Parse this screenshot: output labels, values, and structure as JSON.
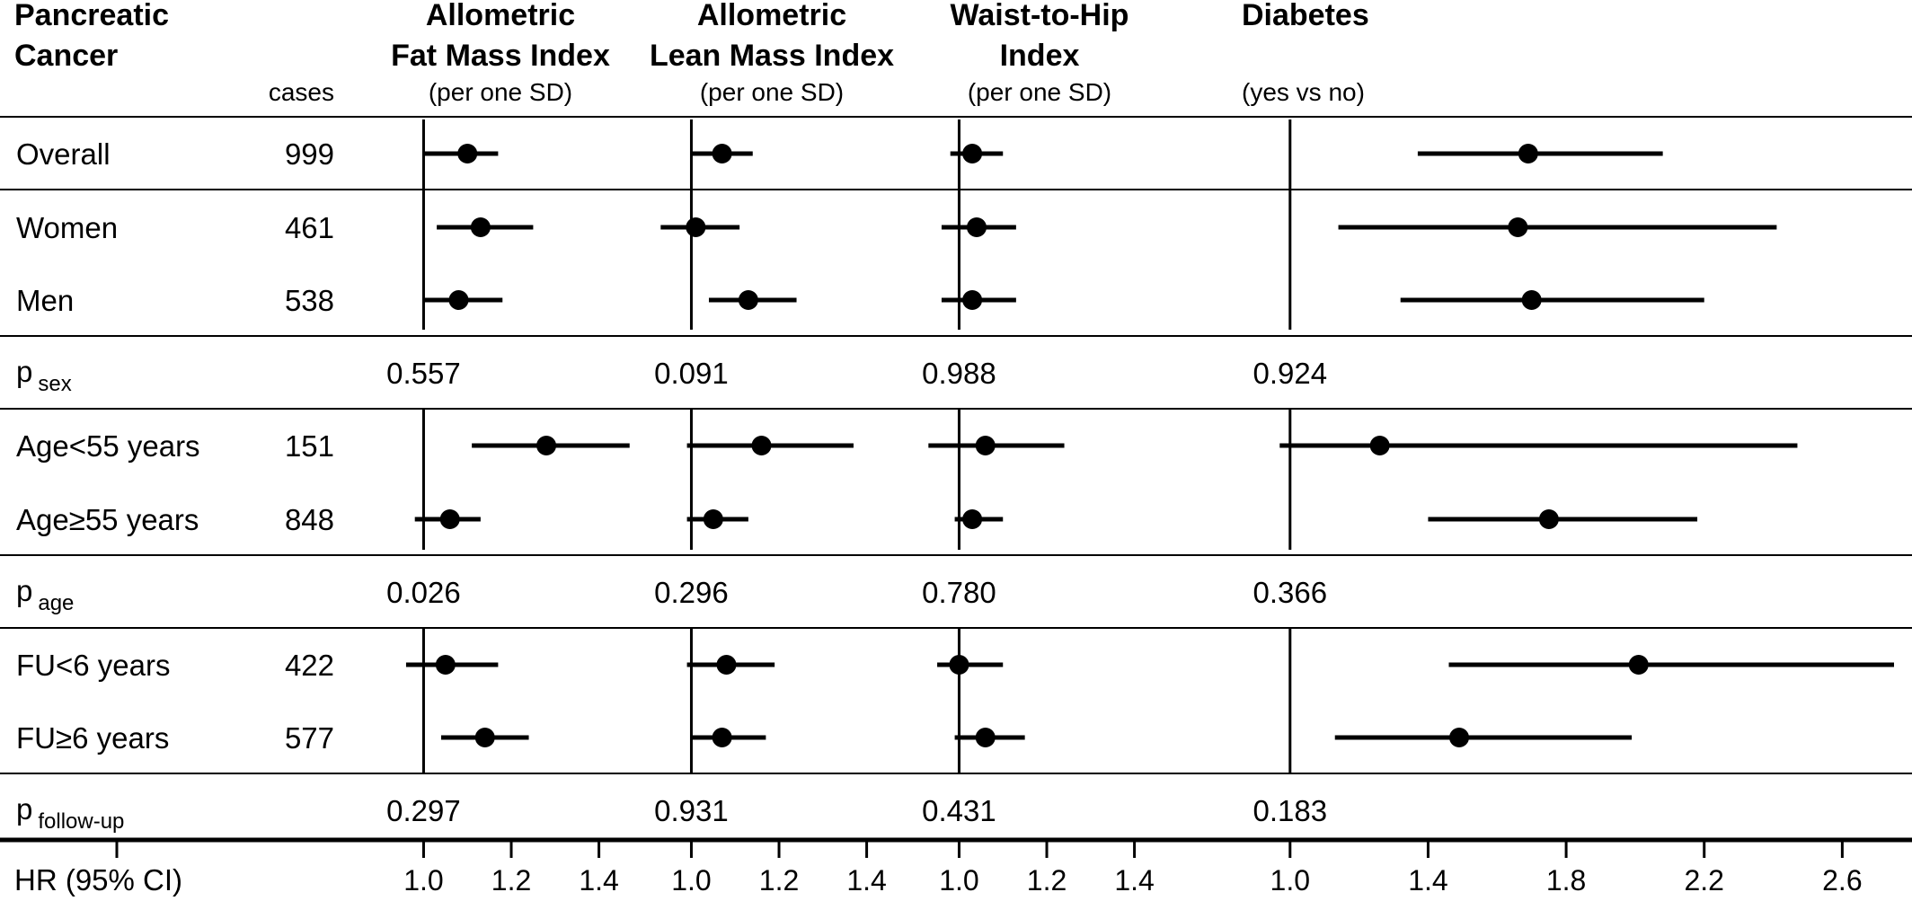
{
  "headers": {
    "outcome_line1": "Pancreatic",
    "outcome_line2": "Cancer",
    "cases": "cases",
    "footer_label": "HR (95% CI)"
  },
  "chart_data": {
    "type": "forest",
    "panels": [
      {
        "id": "afmi",
        "title_lines": [
          "Allometric",
          "Fat Mass Index"
        ],
        "subtitle": "(per one SD)",
        "ref": 1.0,
        "xlim": [
          0.71,
          1.53
        ],
        "ticks": [
          1.0,
          1.2,
          1.4
        ],
        "tick_labels": [
          "1.0",
          "1.2",
          "1.4"
        ]
      },
      {
        "id": "almi",
        "title_lines": [
          "Allometric",
          "Lean Mass Index"
        ],
        "subtitle": "(per one SD)",
        "ref": 1.0,
        "xlim": [
          0.71,
          1.53
        ],
        "ticks": [
          1.0,
          1.2,
          1.4
        ],
        "tick_labels": [
          "1.0",
          "1.2",
          "1.4"
        ]
      },
      {
        "id": "whi",
        "title_lines": [
          "Waist-to-Hip",
          "Index"
        ],
        "subtitle": "(per one SD)",
        "ref": 1.0,
        "xlim": [
          0.71,
          1.53
        ],
        "ticks": [
          1.0,
          1.2,
          1.4
        ],
        "tick_labels": [
          "1.0",
          "1.2",
          "1.4"
        ]
      },
      {
        "id": "diab",
        "title_lines": [
          "Diabetes"
        ],
        "subtitle": "(yes vs no)",
        "ref": 1.0,
        "xlim": [
          0.735,
          2.75
        ],
        "ticks": [
          1.0,
          1.4,
          1.8,
          2.2,
          2.6
        ],
        "tick_labels": [
          "1.0",
          "1.4",
          "1.8",
          "2.2",
          "2.6"
        ]
      }
    ],
    "rows": [
      {
        "kind": "est",
        "label": "Overall",
        "cases": "999",
        "values": [
          [
            1.1,
            1.0,
            1.17
          ],
          [
            1.07,
            1.0,
            1.14
          ],
          [
            1.03,
            0.98,
            1.1
          ],
          [
            1.69,
            1.37,
            2.08
          ]
        ]
      },
      {
        "kind": "est",
        "label": "Women",
        "cases": "461",
        "values": [
          [
            1.13,
            1.03,
            1.25
          ],
          [
            1.01,
            0.93,
            1.11
          ],
          [
            1.04,
            0.96,
            1.13
          ],
          [
            1.66,
            1.14,
            2.41
          ]
        ]
      },
      {
        "kind": "est",
        "label": "Men",
        "cases": "538",
        "values": [
          [
            1.08,
            1.0,
            1.18
          ],
          [
            1.13,
            1.04,
            1.24
          ],
          [
            1.03,
            0.96,
            1.13
          ],
          [
            1.7,
            1.32,
            2.2
          ]
        ]
      },
      {
        "kind": "p",
        "label": "p",
        "sub": "sex",
        "values": [
          "0.557",
          "0.091",
          "0.988",
          "0.924"
        ]
      },
      {
        "kind": "est",
        "label": "Age<55 years",
        "cases": "151",
        "values": [
          [
            1.28,
            1.11,
            1.47
          ],
          [
            1.16,
            0.99,
            1.37
          ],
          [
            1.06,
            0.93,
            1.24
          ],
          [
            1.26,
            0.97,
            2.47
          ]
        ]
      },
      {
        "kind": "est",
        "label": "Age≥55 years",
        "cases": "848",
        "values": [
          [
            1.06,
            0.98,
            1.13
          ],
          [
            1.05,
            0.99,
            1.13
          ],
          [
            1.03,
            0.99,
            1.1
          ],
          [
            1.75,
            1.4,
            2.18
          ]
        ]
      },
      {
        "kind": "p",
        "label": "p",
        "sub": "age",
        "values": [
          "0.026",
          "0.296",
          "0.780",
          "0.366"
        ]
      },
      {
        "kind": "est",
        "label": "FU<6 years",
        "cases": "422",
        "values": [
          [
            1.05,
            0.96,
            1.17
          ],
          [
            1.08,
            0.99,
            1.19
          ],
          [
            1.0,
            0.95,
            1.1
          ],
          [
            2.01,
            1.46,
            2.75
          ]
        ]
      },
      {
        "kind": "est",
        "label": "FU≥6 years",
        "cases": "577",
        "values": [
          [
            1.14,
            1.04,
            1.24
          ],
          [
            1.07,
            1.0,
            1.17
          ],
          [
            1.06,
            0.99,
            1.15
          ],
          [
            1.49,
            1.13,
            1.99
          ]
        ]
      },
      {
        "kind": "p",
        "label": "p",
        "sub": "follow-up",
        "values": [
          "0.297",
          "0.931",
          "0.431",
          "0.183"
        ]
      }
    ],
    "xlabel": "HR (95% CI)"
  }
}
